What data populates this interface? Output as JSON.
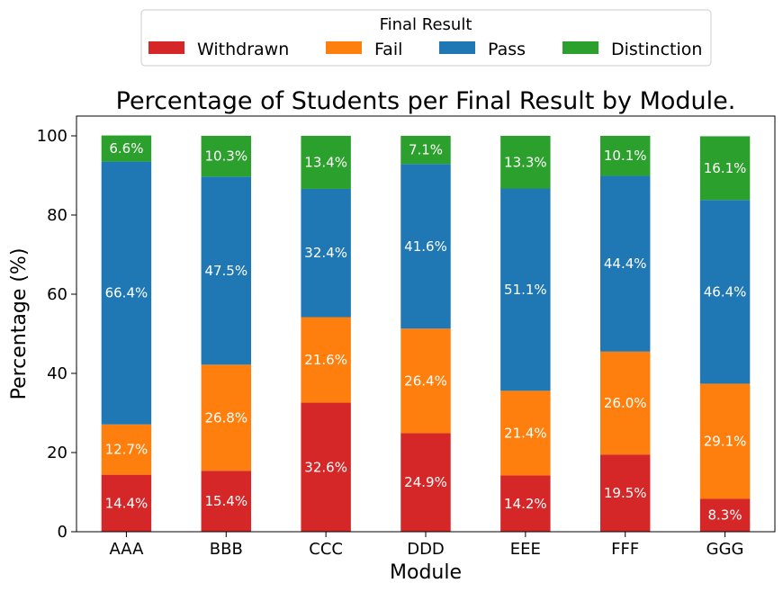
{
  "chart_data": {
    "type": "bar",
    "stacked": true,
    "title": "Percentage of Students per Final Result by Module.",
    "xlabel": "Module",
    "ylabel": "Percentage (%)",
    "ylim": [
      0,
      105
    ],
    "yticks": [
      0,
      20,
      40,
      60,
      80,
      100
    ],
    "grid": false,
    "legend": {
      "title": "Final Result",
      "placement": "top-center"
    },
    "categories": [
      "AAA",
      "BBB",
      "CCC",
      "DDD",
      "EEE",
      "FFF",
      "GGG"
    ],
    "series": [
      {
        "name": "Withdrawn",
        "color": "#d62728",
        "values": [
          14.4,
          15.4,
          32.6,
          24.9,
          14.2,
          19.5,
          8.3
        ],
        "labels": [
          "14.4%",
          "15.4%",
          "32.6%",
          "24.9%",
          "14.2%",
          "19.5%",
          "8.3%"
        ]
      },
      {
        "name": "Fail",
        "color": "#ff7f0e",
        "values": [
          12.7,
          26.8,
          21.6,
          26.4,
          21.4,
          26.0,
          29.1
        ],
        "labels": [
          "12.7%",
          "26.8%",
          "21.6%",
          "26.4%",
          "21.4%",
          "26.0%",
          "29.1%"
        ]
      },
      {
        "name": "Pass",
        "color": "#1f77b4",
        "values": [
          66.4,
          47.5,
          32.4,
          41.6,
          51.1,
          44.4,
          46.4
        ],
        "labels": [
          "66.4%",
          "47.5%",
          "32.4%",
          "41.6%",
          "51.1%",
          "44.4%",
          "46.4%"
        ]
      },
      {
        "name": "Distinction",
        "color": "#2ca02c",
        "values": [
          6.6,
          10.3,
          13.4,
          7.1,
          13.3,
          10.1,
          16.1
        ],
        "labels": [
          "6.6%",
          "10.3%",
          "13.4%",
          "7.1%",
          "13.3%",
          "10.1%",
          "16.1%"
        ]
      }
    ]
  }
}
